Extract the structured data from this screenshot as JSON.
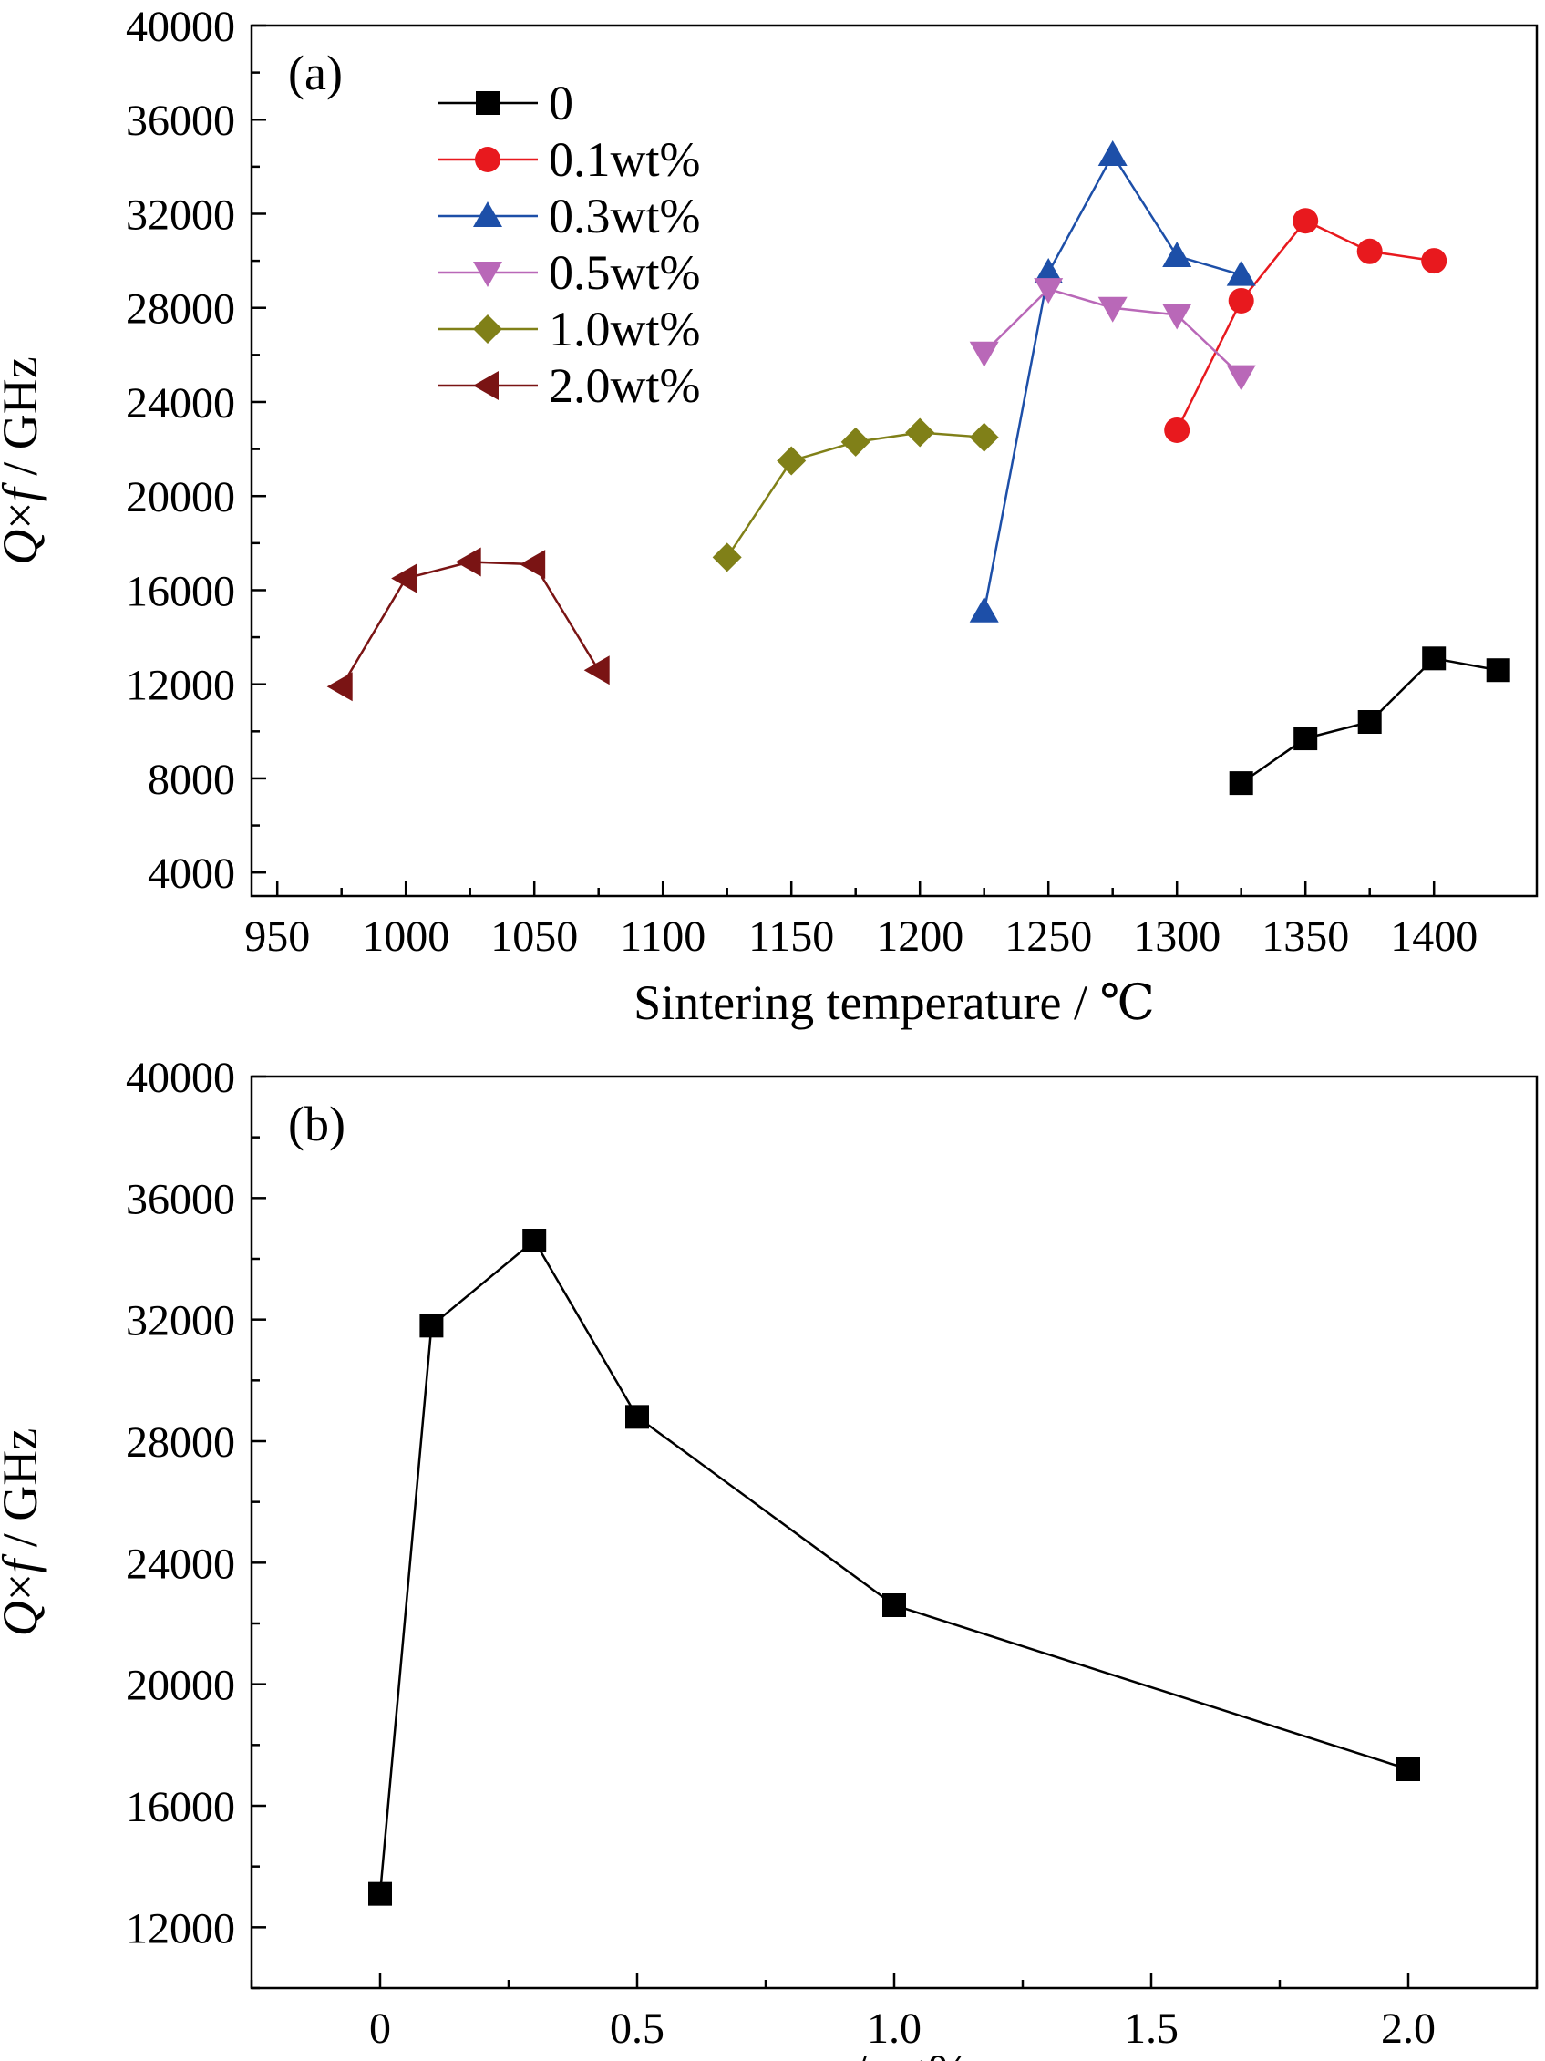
{
  "chart_data": [
    {
      "panel_label": "(a)",
      "type": "line",
      "xlabel": "Sintering temperature / ℃",
      "ylabel": {
        "q": "Q",
        "mid": "×",
        "f": "f",
        "rest": " / GHz"
      },
      "xlim": [
        940,
        1440
      ],
      "ylim": [
        3000,
        40000
      ],
      "xticks": [
        950,
        1000,
        1050,
        1100,
        1150,
        1200,
        1250,
        1300,
        1350,
        1400
      ],
      "yticks": [
        4000,
        8000,
        12000,
        16000,
        20000,
        24000,
        28000,
        32000,
        36000,
        40000
      ],
      "legend_position": "top-left",
      "series": [
        {
          "name": "0",
          "color": "#000000",
          "marker": "square",
          "x": [
            1325,
            1350,
            1375,
            1400,
            1425
          ],
          "y": [
            7800,
            9700,
            10400,
            13100,
            12600
          ]
        },
        {
          "name": "0.1wt%",
          "color": "#e8191e",
          "marker": "circle",
          "x": [
            1300,
            1325,
            1350,
            1375,
            1400
          ],
          "y": [
            22800,
            28300,
            31700,
            30400,
            30000
          ]
        },
        {
          "name": "0.3wt%",
          "color": "#1d4fa8",
          "marker": "triangle-up",
          "x": [
            1225,
            1250,
            1275,
            1300,
            1325
          ],
          "y": [
            15100,
            29500,
            34500,
            30200,
            29400
          ]
        },
        {
          "name": "0.5wt%",
          "color": "#b968b8",
          "marker": "triangle-down",
          "x": [
            1225,
            1250,
            1275,
            1300,
            1325
          ],
          "y": [
            26100,
            28800,
            28000,
            27700,
            25100
          ]
        },
        {
          "name": "1.0wt%",
          "color": "#808018",
          "marker": "diamond",
          "x": [
            1125,
            1150,
            1175,
            1200,
            1225
          ],
          "y": [
            17400,
            21500,
            22300,
            22700,
            22500
          ]
        },
        {
          "name": "2.0wt%",
          "color": "#7a1414",
          "marker": "triangle-left",
          "x": [
            975,
            1000,
            1025,
            1050,
            1075
          ],
          "y": [
            11900,
            16500,
            17200,
            17100,
            12600
          ]
        }
      ]
    },
    {
      "panel_label": "(b)",
      "type": "line",
      "xlabel": {
        "x": "x",
        "rest": " / wt%"
      },
      "ylabel": {
        "q": "Q",
        "mid": "×",
        "f": "f",
        "rest": " / GHz"
      },
      "xlim": [
        -0.25,
        2.25
      ],
      "ylim": [
        10000,
        40000
      ],
      "xticks": [
        0,
        0.5,
        1.0,
        1.5,
        2.0
      ],
      "xtick_labels": [
        "0",
        "0.5",
        "1.0",
        "1.5",
        "2.0"
      ],
      "yticks": [
        12000,
        16000,
        20000,
        24000,
        28000,
        32000,
        36000,
        40000
      ],
      "series": [
        {
          "color": "#000000",
          "marker": "square",
          "x": [
            0,
            0.1,
            0.3,
            0.5,
            1.0,
            2.0
          ],
          "y": [
            13100,
            31800,
            34600,
            28800,
            22600,
            17200
          ]
        }
      ]
    }
  ]
}
